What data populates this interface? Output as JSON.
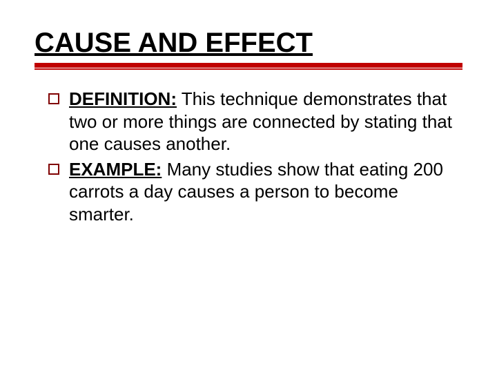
{
  "title": "CAUSE AND EFFECT",
  "colors": {
    "rule": "#c00000",
    "bullet_border": "#800000",
    "text": "#000000",
    "background": "#ffffff"
  },
  "typography": {
    "title_fontsize": 40,
    "body_fontsize": 26,
    "font_family": "Verdana"
  },
  "items": [
    {
      "label": "DEFINITION:",
      "text": " This technique demonstrates that two or more things are connected by stating that one causes another."
    },
    {
      "label": "EXAMPLE:",
      "text": " Many studies show that eating 200 carrots a day causes a person to become smarter."
    }
  ]
}
